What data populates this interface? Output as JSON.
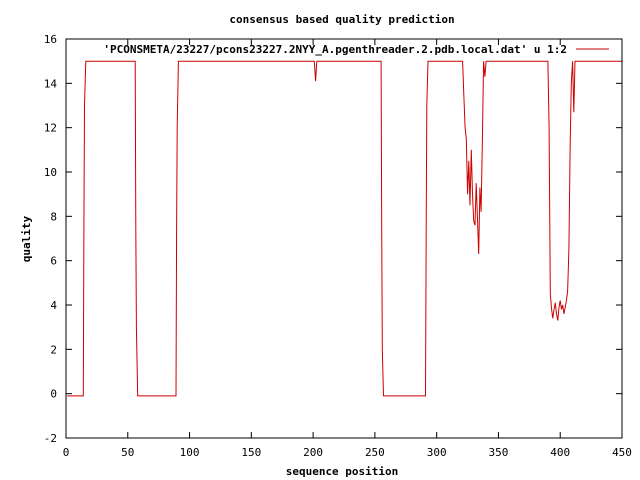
{
  "chart_data": {
    "type": "line",
    "title": "consensus based quality prediction",
    "xlabel": "sequence position",
    "ylabel": "quality",
    "xlim": [
      0,
      450
    ],
    "ylim": [
      -2,
      16
    ],
    "xticks": [
      0,
      50,
      100,
      150,
      200,
      250,
      300,
      350,
      400,
      450
    ],
    "yticks": [
      -2,
      0,
      2,
      4,
      6,
      8,
      10,
      12,
      14,
      16
    ],
    "legend_position": "top-right",
    "series": [
      {
        "name": "'PCONSMETA/23227/pcons23227.2NYY_A.pgenthreader.2.pdb.local.dat' u 1:2",
        "color": "#cc0000",
        "x": [
          1,
          14,
          14.5,
          15,
          16,
          56,
          56.5,
          57,
          58,
          89,
          89.5,
          90,
          91,
          201,
          202,
          203,
          204,
          255,
          255.5,
          256,
          257,
          291,
          291.5,
          292,
          293,
          321,
          322,
          323,
          324,
          325,
          326,
          327,
          328,
          329,
          330,
          331,
          332,
          333,
          334,
          335,
          336,
          337,
          338,
          339,
          340,
          341,
          342,
          343,
          344,
          390,
          391,
          392,
          393,
          394,
          395,
          396,
          397,
          398,
          399,
          400,
          401,
          402,
          403,
          404,
          405,
          406,
          407,
          408,
          409,
          410,
          411,
          412,
          413,
          414,
          415,
          416,
          417,
          418,
          419,
          420,
          450
        ],
        "y": [
          -0.1,
          -0.1,
          7.5,
          13,
          15,
          15,
          7.5,
          3,
          -0.1,
          -0.1,
          7.5,
          12,
          15,
          15,
          14.1,
          15,
          15,
          15,
          7.5,
          2,
          -0.1,
          -0.1,
          7.5,
          13,
          15,
          15,
          13.5,
          12,
          11.5,
          9,
          10.5,
          8.5,
          11,
          9,
          7.8,
          7.6,
          9.5,
          8,
          6.3,
          9.3,
          8.2,
          11.5,
          15,
          14.3,
          15,
          15,
          15,
          15,
          15,
          15,
          12,
          4.5,
          3.8,
          3.4,
          3.8,
          4.1,
          3.6,
          3.3,
          3.9,
          4.2,
          3.8,
          4.0,
          3.6,
          3.9,
          4.2,
          4.6,
          6.5,
          11,
          14,
          15,
          12.7,
          15,
          15,
          15,
          15,
          15,
          15,
          15,
          15,
          15,
          15
        ]
      }
    ]
  }
}
